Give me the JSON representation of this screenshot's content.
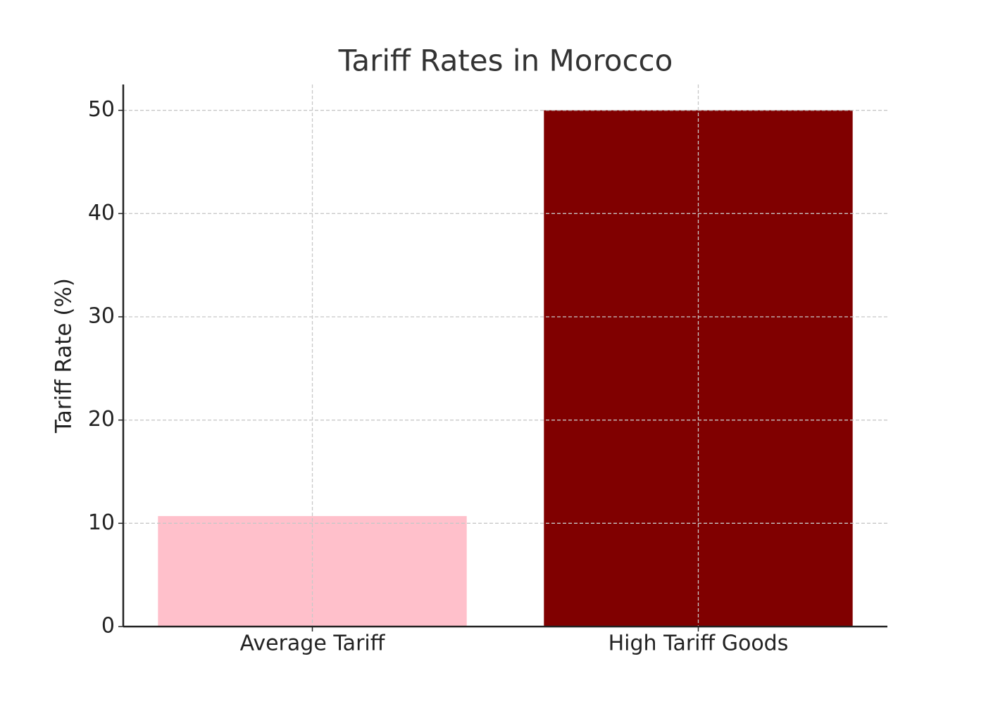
{
  "chart_data": {
    "type": "bar",
    "title": "Tariff Rates in Morocco",
    "y_label": "Tariff Rate (%)",
    "categories": [
      "Average Tariff",
      "High Tariff Goods"
    ],
    "values": [
      10.7,
      50
    ],
    "colors": [
      "#ffc0cb",
      "#800000"
    ],
    "ylim": [
      0,
      52.5
    ],
    "yticks": [
      0,
      10,
      20,
      30,
      40,
      50
    ],
    "grid": true
  }
}
